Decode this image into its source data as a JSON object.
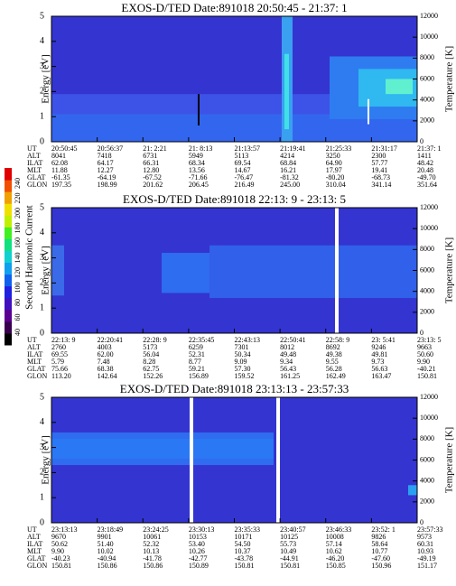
{
  "colorbar": {
    "label": "Second Harmonic Current",
    "ticks": [
      40,
      60,
      80,
      100,
      120,
      140,
      160,
      180,
      200,
      220,
      240
    ]
  },
  "panels": [
    {
      "title": "EXOS-D/TED  Date:891018  20:50:45 - 21:37: 1",
      "ylabel": "Energy [eV]",
      "y2label": "Temperature [K]",
      "yticks": [
        0,
        1,
        2,
        3,
        4,
        5
      ],
      "y2ticks": [
        0,
        2000,
        4000,
        6000,
        8000,
        10000,
        12000
      ],
      "rows": [
        {
          "label": "UT",
          "values": [
            "20:50:45",
            "20:56:37",
            "21: 2:21",
            "21: 8:13",
            "21:13:57",
            "21:19:41",
            "21:25:33",
            "21:31:17",
            "21:37: 1"
          ]
        },
        {
          "label": "ALT",
          "values": [
            "8041",
            "7418",
            "6731",
            "5949",
            "5113",
            "4214",
            "3250",
            "2300",
            "1411"
          ]
        },
        {
          "label": "ILAT",
          "values": [
            "62.08",
            "64.17",
            "66.31",
            "68.34",
            "69.54",
            "68.84",
            "64.90",
            "57.77",
            "48.42"
          ]
        },
        {
          "label": "MLT",
          "values": [
            "11.88",
            "12.27",
            "12.80",
            "13.56",
            "14.67",
            "16.21",
            "17.97",
            "19.41",
            "20.48"
          ]
        },
        {
          "label": "GLAT",
          "values": [
            "-61.35",
            "-64.19",
            "-67.52",
            "-71.66",
            "-76.47",
            "-81.32",
            "-80.20",
            "-68.73",
            "-49.70"
          ]
        },
        {
          "label": "GLON",
          "values": [
            "197.35",
            "198.99",
            "201.62",
            "206.45",
            "216.49",
            "245.00",
            "310.04",
            "341.14",
            "351.64"
          ]
        }
      ]
    },
    {
      "title": "EXOS-D/TED  Date:891018  22:13: 9 - 23:13: 5",
      "ylabel": "Energy [eV]",
      "y2label": "Temperature [K]",
      "yticks": [
        0,
        1,
        2,
        3,
        4,
        5
      ],
      "y2ticks": [
        0,
        2000,
        4000,
        6000,
        8000,
        10000,
        12000
      ],
      "rows": [
        {
          "label": "UT",
          "values": [
            "22:13: 9",
            "22:20:41",
            "22:28: 9",
            "22:35:45",
            "22:43:13",
            "22:50:41",
            "22:58: 9",
            "23: 5:41",
            "23:13: 5"
          ]
        },
        {
          "label": "ALT",
          "values": [
            "2760",
            "4003",
            "5173",
            "6259",
            "7301",
            "8012",
            "8692",
            "9246",
            "9663"
          ]
        },
        {
          "label": "ILAT",
          "values": [
            "69.55",
            "62.00",
            "56.04",
            "52.31",
            "50.34",
            "49.48",
            "49.38",
            "49.81",
            "50.60"
          ]
        },
        {
          "label": "MLT",
          "values": [
            "5.79",
            "7.48",
            "8.28",
            "8.77",
            "9.09",
            "9.34",
            "9.55",
            "9.73",
            "9.90"
          ]
        },
        {
          "label": "GLAT",
          "values": [
            "75.66",
            "68.38",
            "62.75",
            "59.21",
            "57.30",
            "56.43",
            "56.28",
            "56.63",
            "-40.21"
          ]
        },
        {
          "label": "GLON",
          "values": [
            "113.20",
            "142.64",
            "152.26",
            "156.89",
            "159.52",
            "161.25",
            "162.49",
            "163.47",
            "150.81"
          ]
        }
      ]
    },
    {
      "title": "EXOS-D/TED  Date:891018  23:13:13 - 23:57:33",
      "ylabel": "Energy [eV]",
      "y2label": "Temperature [K]",
      "yticks": [
        0,
        1,
        2,
        3,
        4,
        5
      ],
      "y2ticks": [
        0,
        2000,
        4000,
        6000,
        8000,
        10000,
        12000
      ],
      "rows": [
        {
          "label": "UT",
          "values": [
            "23:13:13",
            "23:18:49",
            "23:24:25",
            "23:30:13",
            "23:35:33",
            "23:40:57",
            "23:46:33",
            "23:52: 1",
            "23:57:33"
          ]
        },
        {
          "label": "ALT",
          "values": [
            "9670",
            "9901",
            "10061",
            "10153",
            "10171",
            "10125",
            "10008",
            "9826",
            "9573"
          ]
        },
        {
          "label": "ILAT",
          "values": [
            "50.62",
            "51.40",
            "52.32",
            "53.40",
            "54.50",
            "55.73",
            "57.14",
            "58.64",
            "60.31"
          ]
        },
        {
          "label": "MLT",
          "values": [
            "9.90",
            "10.02",
            "10.13",
            "10.26",
            "10.37",
            "10.49",
            "10.62",
            "10.77",
            "10.93"
          ]
        },
        {
          "label": "GLAT",
          "values": [
            "-40.23",
            "-40.94",
            "-41.78",
            "-42.77",
            "-43.78",
            "-44.91",
            "-46.20",
            "-47.60",
            "-49.19"
          ]
        },
        {
          "label": "GLON",
          "values": [
            "150.81",
            "150.86",
            "150.86",
            "150.89",
            "150.81",
            "150.81",
            "150.85",
            "150.96",
            "151.17"
          ]
        }
      ]
    }
  ]
}
